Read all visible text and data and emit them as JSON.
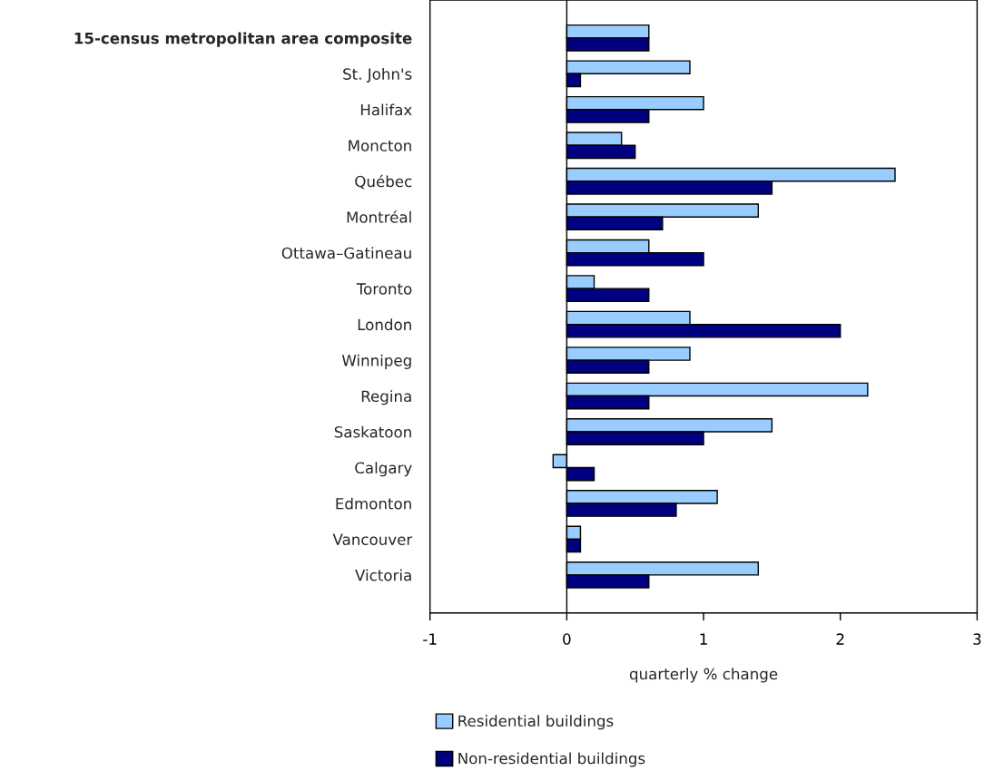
{
  "chart_data": {
    "type": "bar",
    "orientation": "horizontal",
    "xlabel": "quarterly % change",
    "categories": [
      "15-census metropolitan area composite",
      "St. John's",
      "Halifax",
      "Moncton",
      "Québec",
      "Montréal",
      "Ottawa–Gatineau",
      "Toronto",
      "London",
      "Winnipeg",
      "Regina",
      "Saskatoon",
      "Calgary",
      "Edmonton",
      "Vancouver",
      "Victoria"
    ],
    "series": [
      {
        "name": "Residential buildings",
        "color": "#99ccff",
        "values": [
          0.6,
          0.9,
          1.0,
          0.4,
          2.4,
          1.4,
          0.6,
          0.2,
          0.9,
          0.9,
          2.2,
          1.5,
          -0.1,
          1.1,
          0.1,
          1.4
        ]
      },
      {
        "name": "Non-residential buildings",
        "color": "#000080",
        "values": [
          0.6,
          0.1,
          0.6,
          0.5,
          1.5,
          0.7,
          1.0,
          0.6,
          2.0,
          0.6,
          0.6,
          1.0,
          0.2,
          0.8,
          0.1,
          0.6
        ]
      }
    ],
    "xlim": [
      -1,
      3
    ],
    "xticks": [
      -1,
      0,
      1,
      2,
      3
    ],
    "ref_lines": [
      {
        "axis": "x",
        "value": 0,
        "color": "#000000"
      }
    ],
    "grid": false,
    "legend": "bottom"
  }
}
